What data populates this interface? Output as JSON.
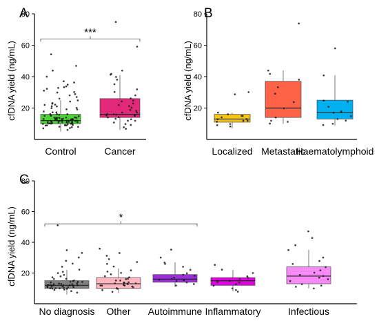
{
  "chart_data": [
    {
      "panel": "A",
      "type": "box",
      "ylabel": "cfDNA yield (ng/mL)",
      "ylim": [
        0,
        80
      ],
      "yticks": [
        20,
        40,
        60,
        80
      ],
      "grid": false,
      "categories": [
        "Control",
        "Cancer"
      ],
      "colors": [
        "#4cd137",
        "#e3287a"
      ],
      "boxes": [
        {
          "min": 5,
          "q1": 10,
          "median": 12,
          "q3": 16,
          "max": 25
        },
        {
          "min": 6,
          "q1": 14,
          "median": 16,
          "q3": 26,
          "max": 41
        }
      ],
      "points": [
        [
          11,
          12,
          9,
          14,
          10,
          13,
          8,
          15,
          12,
          16,
          11,
          10,
          9,
          13,
          12,
          14,
          11,
          17,
          10,
          12,
          13,
          9,
          15,
          11,
          14,
          12,
          10,
          16,
          13,
          11,
          18,
          12,
          9,
          14,
          10,
          13,
          12,
          15,
          11,
          16,
          10,
          12,
          14,
          8,
          13,
          11,
          17,
          12,
          10,
          15,
          13,
          9,
          11,
          14,
          12,
          16,
          10,
          13,
          11,
          12,
          19,
          20,
          21,
          22,
          23,
          24,
          19,
          21,
          22,
          20,
          23,
          25,
          26,
          28,
          29,
          30,
          31,
          32,
          33,
          34,
          35,
          36,
          37,
          27,
          30,
          33,
          40,
          44,
          47,
          54,
          7,
          6,
          8,
          7,
          9,
          10,
          11,
          12,
          13,
          14
        ],
        [
          12,
          14,
          15,
          16,
          13,
          17,
          18,
          15,
          14,
          16,
          19,
          20,
          22,
          24,
          25,
          13,
          12,
          11,
          15,
          16,
          26,
          28,
          30,
          32,
          35,
          38,
          40,
          41,
          42,
          44,
          9,
          8,
          10,
          7,
          17,
          21,
          23,
          59,
          75
        ]
      ],
      "significance": {
        "label": "***",
        "y": 64
      }
    },
    {
      "panel": "B",
      "type": "box",
      "ylabel": "cfDNA yield (ng/mL)",
      "ylim": [
        0,
        80
      ],
      "yticks": [
        20,
        40,
        60,
        80
      ],
      "grid": false,
      "categories": [
        "Localized",
        "Metastatic",
        "Haematolymphoid"
      ],
      "colors": [
        "#f5c518",
        "#ff6347",
        "#00b0f0"
      ],
      "boxes": [
        {
          "min": 7,
          "q1": 11,
          "median": 13,
          "q3": 16,
          "max": 17
        },
        {
          "min": 10,
          "q1": 14,
          "median": 20,
          "q3": 37,
          "max": 44
        },
        {
          "min": 9,
          "q1": 13,
          "median": 17,
          "q3": 25,
          "max": 41
        }
      ],
      "points": [
        [
          9,
          10,
          12,
          13,
          14,
          15,
          16,
          17,
          11,
          13,
          8,
          12,
          15,
          29,
          30
        ],
        [
          10,
          12,
          14,
          20,
          24,
          29,
          33,
          38,
          42,
          44,
          74,
          11
        ],
        [
          9,
          12,
          13,
          15,
          17,
          18,
          21,
          24,
          25,
          41,
          58,
          10
        ]
      ]
    },
    {
      "panel": "C",
      "type": "box",
      "ylabel": "cfDNA yield (ng/mL)",
      "ylim": [
        0,
        80
      ],
      "yticks": [
        20,
        40,
        60,
        80
      ],
      "grid": false,
      "categories": [
        "No diagnosis",
        "Other",
        "Autoimmune",
        "Inflammatory",
        "Infectious"
      ],
      "colors": [
        "#808080",
        "#ffb6c1",
        "#9b30d9",
        "#e100e1",
        "#f78af7"
      ],
      "boxes": [
        {
          "min": 6,
          "q1": 10,
          "median": 12,
          "q3": 15,
          "max": 22
        },
        {
          "min": 7,
          "q1": 10,
          "median": 13,
          "q3": 17,
          "max": 23
        },
        {
          "min": 11,
          "q1": 14,
          "median": 16,
          "q3": 19,
          "max": 27
        },
        {
          "min": 8,
          "q1": 12,
          "median": 15,
          "q3": 17,
          "max": 22
        },
        {
          "min": 10,
          "q1": 13,
          "median": 18,
          "q3": 24,
          "max": 35
        }
      ],
      "points": [
        [
          10,
          11,
          12,
          13,
          9,
          14,
          12,
          10,
          11,
          15,
          13,
          12,
          16,
          11,
          10,
          14,
          12,
          13,
          9,
          11,
          17,
          12,
          10,
          15,
          13,
          11,
          18,
          12,
          14,
          10,
          20,
          22,
          21,
          19,
          8,
          7,
          12,
          13,
          11,
          16,
          24,
          26,
          28,
          30,
          33,
          35,
          51,
          14,
          12,
          10
        ],
        [
          10,
          12,
          13,
          14,
          11,
          15,
          16,
          12,
          13,
          17,
          18,
          10,
          11,
          14,
          19,
          20,
          21,
          22,
          12,
          13,
          9,
          8,
          15,
          16,
          24,
          26,
          27,
          29,
          31,
          33,
          36,
          14,
          13,
          12
        ],
        [
          12,
          14,
          15,
          16,
          17,
          18,
          19,
          13,
          20,
          22,
          24,
          26,
          27,
          30,
          35,
          15,
          16
        ],
        [
          9,
          10,
          12,
          13,
          14,
          15,
          16,
          17,
          18,
          20,
          22,
          25,
          8,
          14
        ],
        [
          10,
          11,
          13,
          15,
          17,
          18,
          20,
          22,
          24,
          26,
          28,
          30,
          35,
          38,
          43,
          47,
          12,
          16,
          19
        ]
      ],
      "significance": {
        "label": "*",
        "y": 52,
        "from": 0,
        "to": 2
      }
    }
  ]
}
